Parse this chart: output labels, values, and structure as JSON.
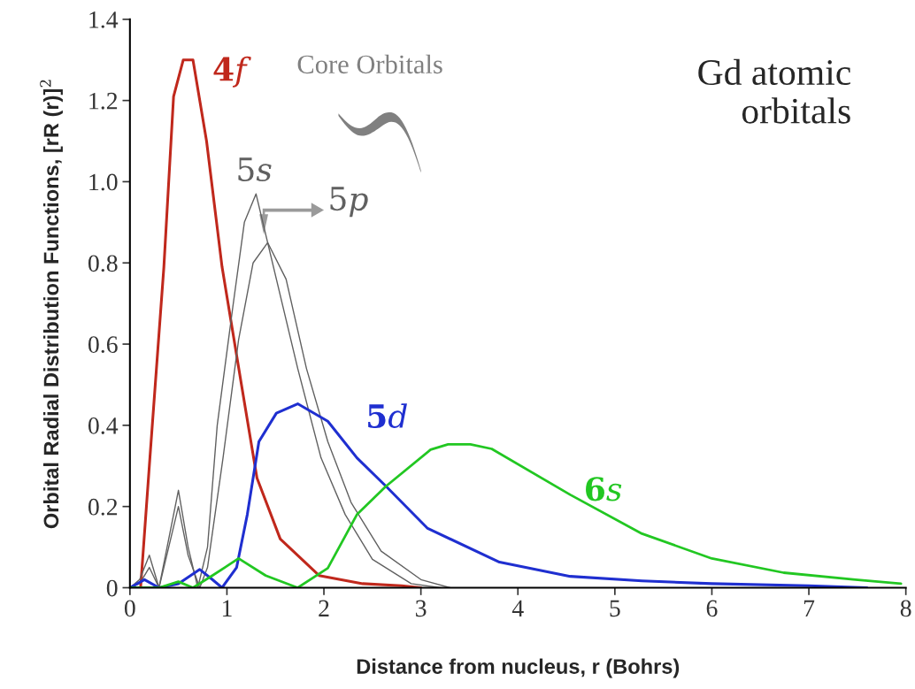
{
  "chart_data": {
    "type": "line",
    "title": "Gd atomic\norbitals",
    "xlabel": "Distance from nucleus, r (Bohrs)",
    "ylabel": "Orbital Radial Distribution Functions, [rR (r)]$^{2}$",
    "annotations": [
      "Core Orbitals"
    ],
    "xlim": [
      0,
      8
    ],
    "xticks": [
      0,
      1,
      2,
      3,
      4,
      5,
      6,
      7,
      8
    ],
    "ylim": [
      0,
      1.4
    ],
    "yticks": [
      0,
      {
        "value": 0.2,
        "label": "0.2"
      },
      {
        "value": 0.4,
        "label": "0.4"
      },
      {
        "value": 0.6,
        "label": "0.6"
      },
      {
        "value": 0.8,
        "label": "0.8"
      },
      {
        "value": 1,
        "label": "1.0"
      },
      {
        "value": 1.2,
        "label": "1.2"
      },
      {
        "value": 1.4,
        "label": "1.4"
      }
    ],
    "grid": false,
    "legend": false,
    "marker": "none",
    "line_style": "solid",
    "series": [
      {
        "name": "4f",
        "color": "#c0281c",
        "x": [
          0,
          0.11,
          0.2,
          0.35,
          0.45,
          0.55,
          0.65,
          0.79,
          0.95,
          1.15,
          1.31,
          1.55,
          1.95,
          2.4,
          2.8,
          3.0
        ],
        "values": [
          0,
          0,
          0.3,
          0.79,
          1.21,
          1.3,
          1.3,
          1.1,
          0.79,
          0.5,
          0.27,
          0.12,
          0.03,
          0.01,
          0.005,
          0
        ]
      },
      {
        "name": "5s",
        "color": "#606060",
        "x": [
          0,
          0.1,
          0.2,
          0.3,
          0.4,
          0.5,
          0.6,
          0.7,
          0.8,
          0.9,
          1.06,
          1.18,
          1.3,
          1.51,
          1.73,
          1.97,
          2.22,
          2.5,
          2.9,
          3.2
        ],
        "values": [
          0,
          0.02,
          0.08,
          0,
          0.12,
          0.24,
          0.1,
          0,
          0.1,
          0.4,
          0.69,
          0.9,
          0.97,
          0.76,
          0.54,
          0.32,
          0.18,
          0.07,
          0.01,
          0
        ]
      },
      {
        "name": "5p",
        "color": "#606060",
        "x": [
          0,
          0.1,
          0.2,
          0.3,
          0.4,
          0.5,
          0.6,
          0.72,
          0.8,
          0.96,
          1.12,
          1.27,
          1.42,
          1.61,
          1.82,
          2.04,
          2.28,
          2.59,
          3.0,
          3.3
        ],
        "values": [
          0,
          0.01,
          0.05,
          0,
          0.1,
          0.2,
          0.08,
          0,
          0.05,
          0.32,
          0.61,
          0.8,
          0.85,
          0.76,
          0.54,
          0.36,
          0.21,
          0.09,
          0.02,
          0
        ]
      },
      {
        "name": "5d",
        "color": "#1f2fd0",
        "x": [
          0,
          0.15,
          0.3,
          0.5,
          0.72,
          0.85,
          0.95,
          1.1,
          1.21,
          1.33,
          1.51,
          1.73,
          2.04,
          2.34,
          2.64,
          3.07,
          3.81,
          4.54,
          5.28,
          6.0,
          7.0,
          7.6
        ],
        "values": [
          0,
          0.02,
          0,
          0.01,
          0.045,
          0.02,
          0,
          0.05,
          0.18,
          0.36,
          0.43,
          0.453,
          0.41,
          0.32,
          0.25,
          0.146,
          0.063,
          0.028,
          0.017,
          0.01,
          0.005,
          0
        ]
      },
      {
        "name": "6s",
        "color": "#22c722",
        "x": [
          0,
          0.3,
          0.5,
          0.65,
          0.85,
          1.12,
          1.4,
          1.73,
          2.04,
          2.34,
          2.64,
          3.1,
          3.28,
          3.51,
          3.73,
          4.54,
          5.28,
          6.0,
          6.74,
          7.48,
          7.95
        ],
        "values": [
          0,
          0,
          0.015,
          0,
          0.03,
          0.072,
          0.03,
          0,
          0.048,
          0.18,
          0.25,
          0.34,
          0.353,
          0.353,
          0.342,
          0.229,
          0.133,
          0.072,
          0.037,
          0.02,
          0.01
        ]
      }
    ]
  }
}
